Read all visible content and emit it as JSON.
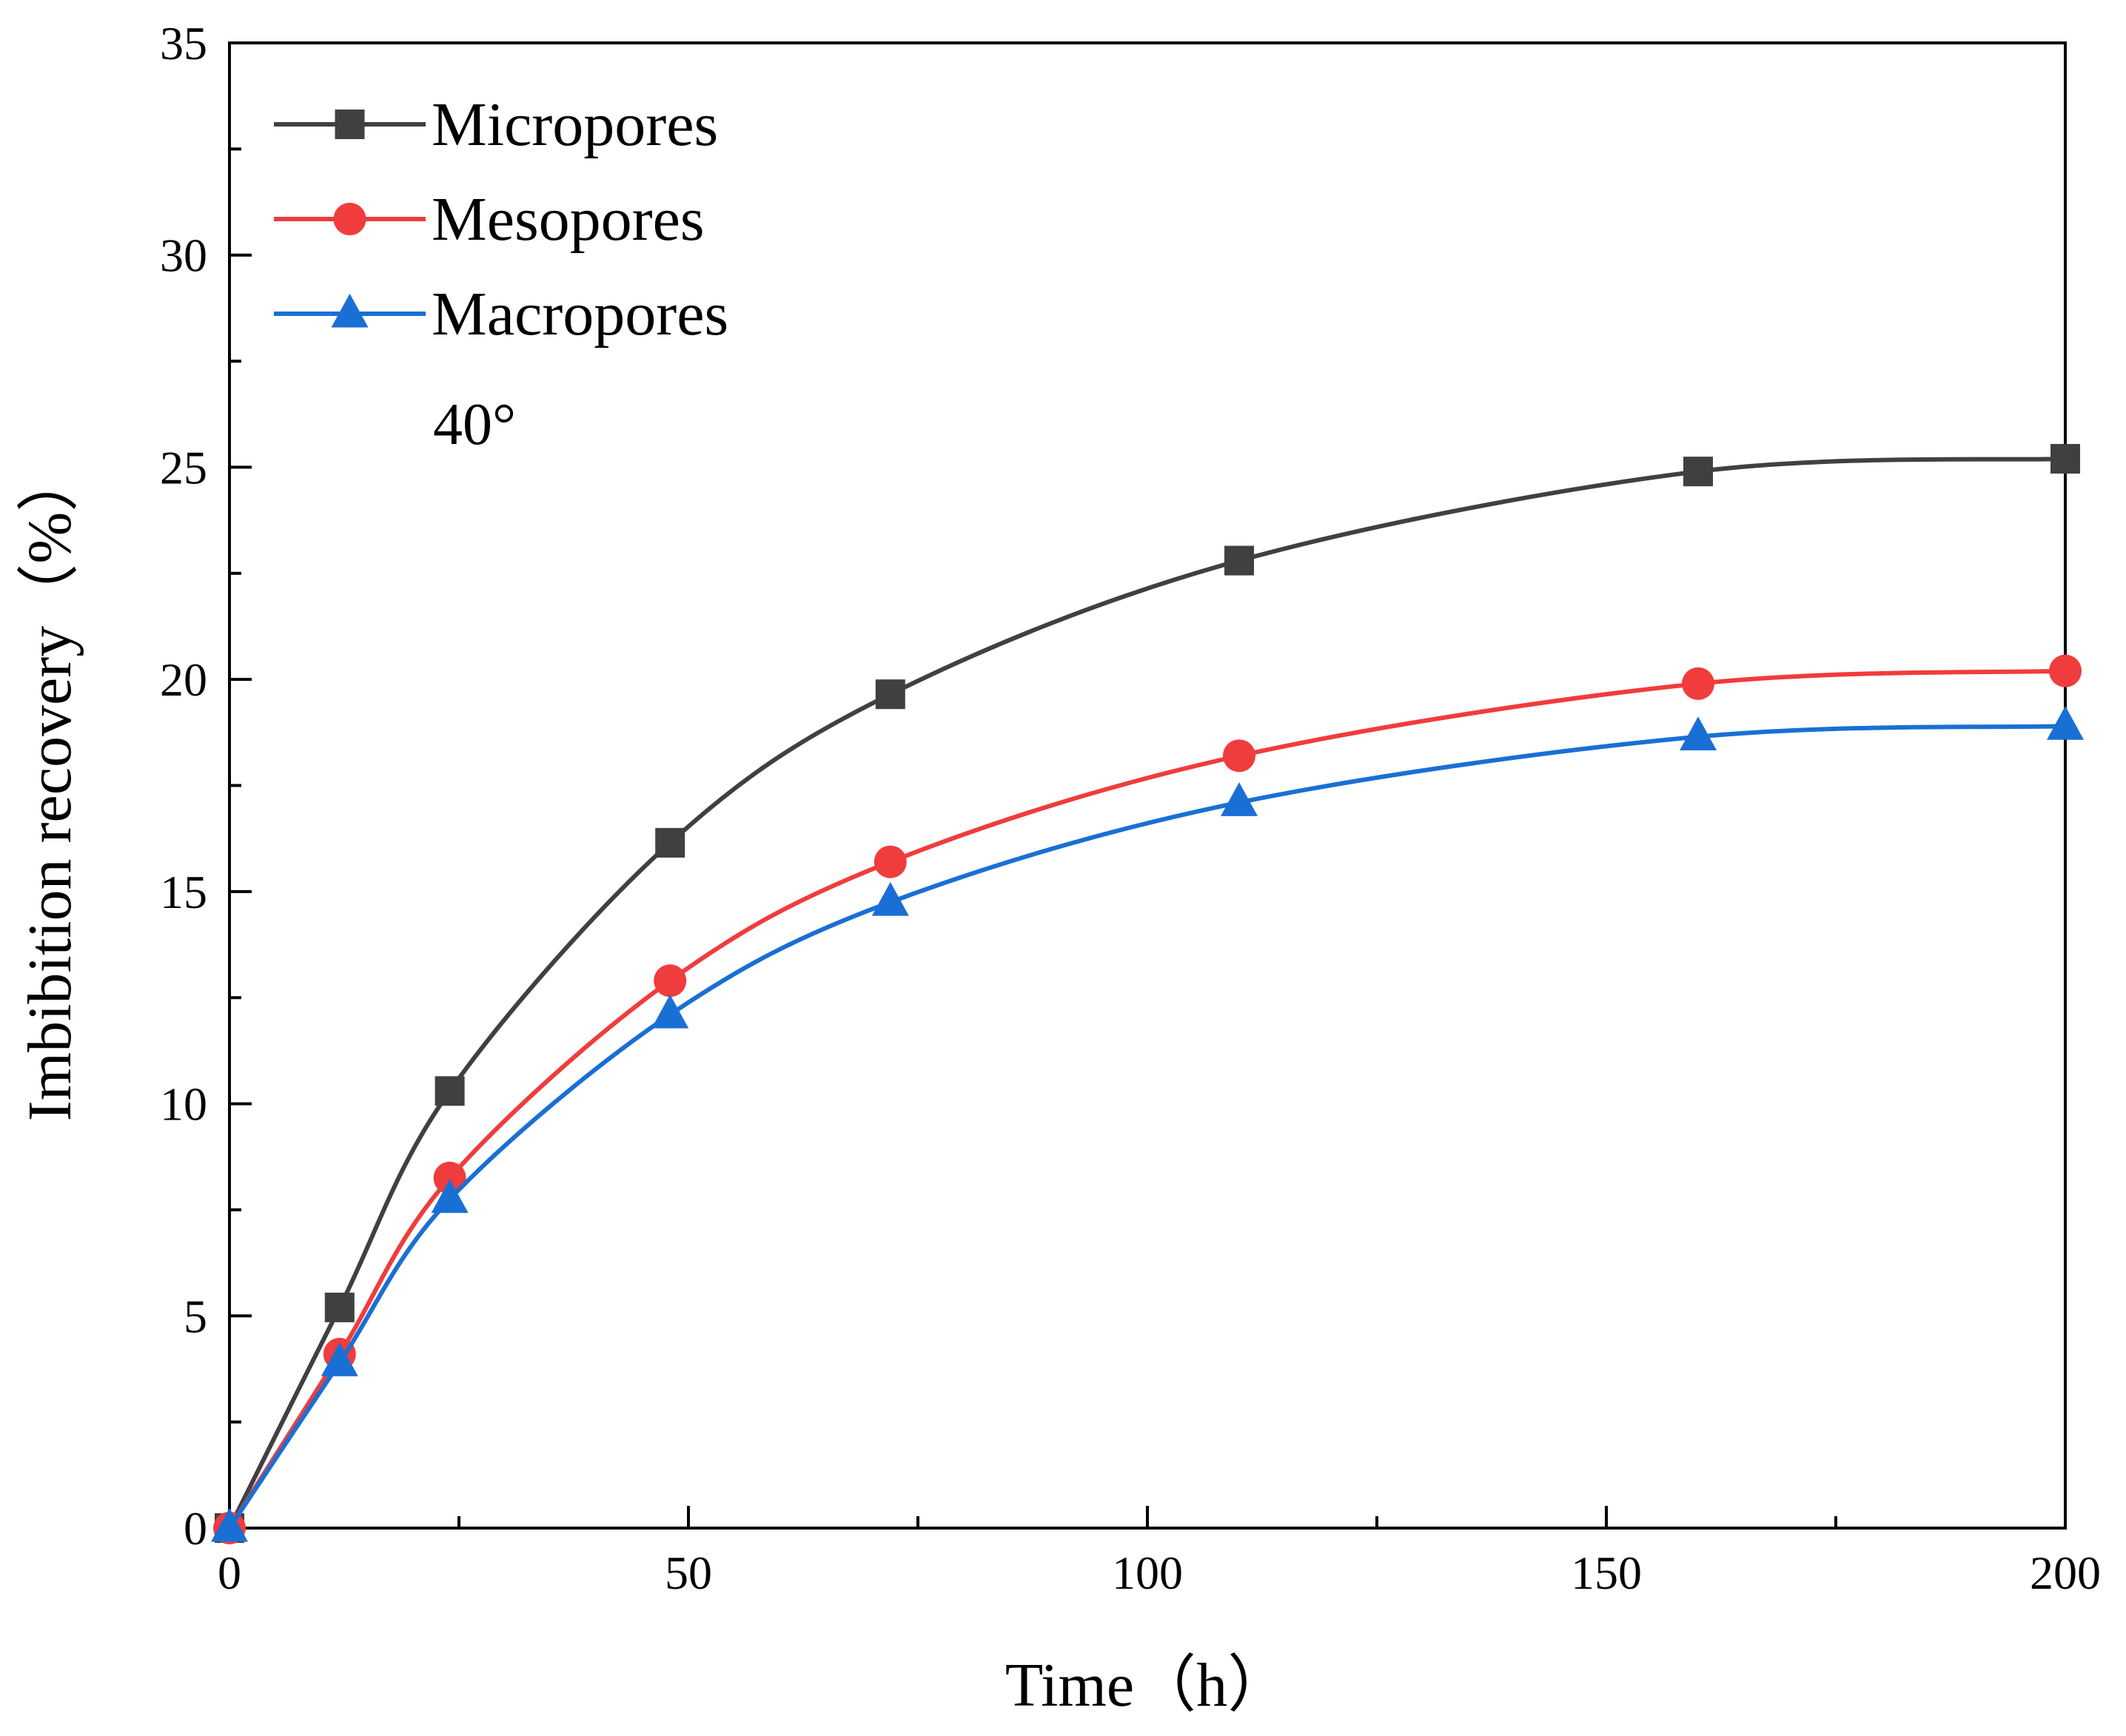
{
  "chart_data": {
    "type": "line",
    "title": "",
    "xlabel": "Time（h）",
    "ylabel": "Imbibition recovery（%）",
    "xlim": [
      0,
      200
    ],
    "ylim": [
      0,
      35
    ],
    "x_ticks": [
      0,
      50,
      100,
      150,
      200
    ],
    "y_ticks": [
      0,
      5,
      10,
      15,
      20,
      25,
      30,
      35
    ],
    "x_minor_step": 25,
    "y_minor_step": 2.5,
    "grid": false,
    "legend_position": "top-left",
    "annotation": "40°",
    "x": [
      0,
      12,
      24,
      48,
      72,
      110,
      160,
      200
    ],
    "series": [
      {
        "name": "Micropores",
        "marker": "square",
        "color": "#404040",
        "values": [
          0,
          5.2,
          10.3,
          16.15,
          19.65,
          22.8,
          24.9,
          25.2
        ]
      },
      {
        "name": "Mesopores",
        "marker": "circle",
        "color": "#f03c3c",
        "values": [
          0,
          4.1,
          8.25,
          12.9,
          15.7,
          18.2,
          19.9,
          20.2
        ]
      },
      {
        "name": "Macropores",
        "marker": "triangle",
        "color": "#1a6fd4",
        "values": [
          0,
          3.9,
          7.75,
          12.1,
          14.75,
          17.1,
          18.65,
          18.9
        ]
      }
    ]
  }
}
